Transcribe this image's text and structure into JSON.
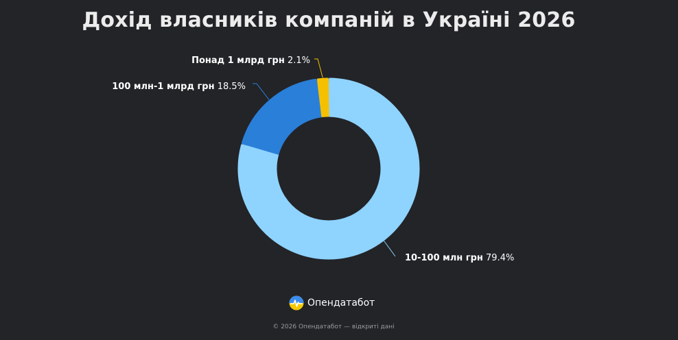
{
  "chart_data": {
    "type": "pie",
    "variant": "donut",
    "title": "Дохід власників компаній в Україні 2026",
    "slices": [
      {
        "label": "10-100 млн грн",
        "value": 79.4,
        "value_text": "79.4%",
        "color": "#8fd3ff"
      },
      {
        "label": "100 млн-1 млрд грн",
        "value": 18.5,
        "value_text": "18.5%",
        "color": "#2a7fd9"
      },
      {
        "label": "Понад 1 млрд грн",
        "value": 2.1,
        "value_text": "2.1%",
        "color": "#f5c000"
      }
    ],
    "legend": "none",
    "label_style": "callouts"
  },
  "brand": {
    "name": "Опендатабот",
    "logo_colors": [
      "#3b8cf0",
      "#f5c800"
    ]
  },
  "footer": {
    "text": "© 2026 Опендатабот — відкриті дані"
  }
}
